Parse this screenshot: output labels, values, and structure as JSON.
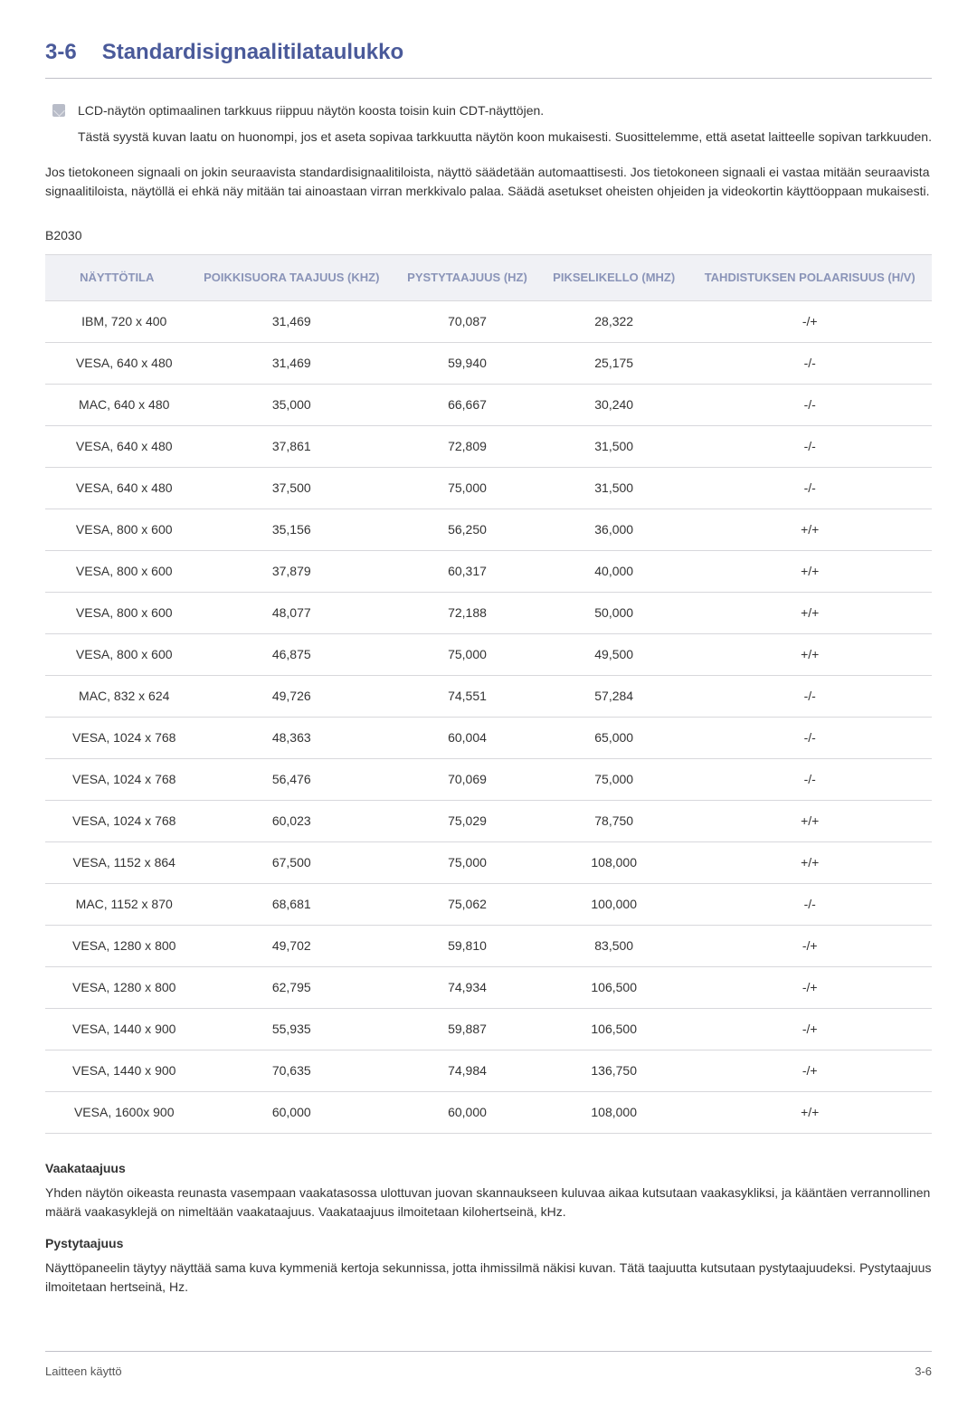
{
  "heading": {
    "number": "3-6",
    "title": "Standardisignaalitilataulukko"
  },
  "bullet": {
    "main": "LCD-näytön optimaalinen tarkkuus riippuu näytön koosta toisin kuin CDT-näyttöjen.",
    "sub": "Tästä syystä kuvan laatu on huonompi, jos et aseta sopivaa tarkkuutta näytön koon mukaisesti. Suosittelemme, että asetat laitteelle sopivan tarkkuuden."
  },
  "intro_paragraph": "Jos tietokoneen signaali on jokin seuraavista standardisignaalitiloista, näyttö säädetään automaattisesti. Jos tietokoneen signaali ei vastaa mitään seuraavista signaalitiloista, näytöllä ei ehkä näy mitään tai ainoastaan virran merkkivalo palaa. Säädä asetukset oheisten ohjeiden ja videokortin käyttöoppaan mukaisesti.",
  "model": "B2030",
  "table": {
    "columns": [
      "NÄYTTÖTILA",
      "POIKKISUORA TAAJUUS (KHZ)",
      "PYSTYTAAJUUS (HZ)",
      "PIKSELIKELLO (MHZ)",
      "TAHDISTUKSEN POLAARISUUS (H/V)"
    ],
    "rows": [
      [
        "IBM, 720 x 400",
        "31,469",
        "70,087",
        "28,322",
        "-/+"
      ],
      [
        "VESA, 640 x 480",
        "31,469",
        "59,940",
        "25,175",
        "-/-"
      ],
      [
        "MAC, 640 x 480",
        "35,000",
        "66,667",
        "30,240",
        "-/-"
      ],
      [
        "VESA, 640 x 480",
        "37,861",
        "72,809",
        "31,500",
        "-/-"
      ],
      [
        "VESA, 640 x 480",
        "37,500",
        "75,000",
        "31,500",
        "-/-"
      ],
      [
        "VESA, 800 x 600",
        "35,156",
        "56,250",
        "36,000",
        "+/+"
      ],
      [
        "VESA, 800 x 600",
        "37,879",
        "60,317",
        "40,000",
        "+/+"
      ],
      [
        "VESA, 800 x 600",
        "48,077",
        "72,188",
        "50,000",
        "+/+"
      ],
      [
        "VESA, 800 x 600",
        "46,875",
        "75,000",
        "49,500",
        "+/+"
      ],
      [
        "MAC, 832 x 624",
        "49,726",
        "74,551",
        "57,284",
        "-/-"
      ],
      [
        "VESA, 1024 x 768",
        "48,363",
        "60,004",
        "65,000",
        "-/-"
      ],
      [
        "VESA, 1024 x 768",
        "56,476",
        "70,069",
        "75,000",
        "-/-"
      ],
      [
        "VESA, 1024 x 768",
        "60,023",
        "75,029",
        "78,750",
        "+/+"
      ],
      [
        "VESA, 1152 x 864",
        "67,500",
        "75,000",
        "108,000",
        "+/+"
      ],
      [
        "MAC, 1152 x 870",
        "68,681",
        "75,062",
        "100,000",
        "-/-"
      ],
      [
        "VESA, 1280 x 800",
        "49,702",
        "59,810",
        "83,500",
        "-/+"
      ],
      [
        "VESA, 1280 x 800",
        "62,795",
        "74,934",
        "106,500",
        "-/+"
      ],
      [
        "VESA, 1440 x 900",
        "55,935",
        "59,887",
        "106,500",
        "-/+"
      ],
      [
        "VESA, 1440 x 900",
        "70,635",
        "74,984",
        "136,750",
        "-/+"
      ],
      [
        "VESA, 1600x 900",
        "60,000",
        "60,000",
        "108,000",
        "+/+"
      ]
    ]
  },
  "definitions": [
    {
      "title": "Vaakataajuus",
      "body": "Yhden näytön oikeasta reunasta vasempaan vaakatasossa ulottuvan juovan skannaukseen kuluvaa aikaa kutsutaan vaakasykliksi, ja kääntäen verrannollinen määrä vaakasyklejä on nimeltään vaakataajuus. Vaakataajuus ilmoitetaan kilohertseinä, kHz."
    },
    {
      "title": "Pystytaajuus",
      "body": "Näyttöpaneelin täytyy näyttää sama kuva kymmeniä kertoja sekunnissa, jotta ihmissilmä näkisi kuvan. Tätä taajuutta kutsutaan pystytaajuudeksi. Pystytaajuus ilmoitetaan hertseinä, Hz."
    }
  ],
  "footer": {
    "left": "Laitteen käyttö",
    "right": "3-6"
  },
  "colors": {
    "heading": "#4a5a9a",
    "table_header_bg": "#f0f1f5",
    "table_header_text": "#8a94b8",
    "border": "#d8d8dc",
    "body_text": "#333333"
  }
}
